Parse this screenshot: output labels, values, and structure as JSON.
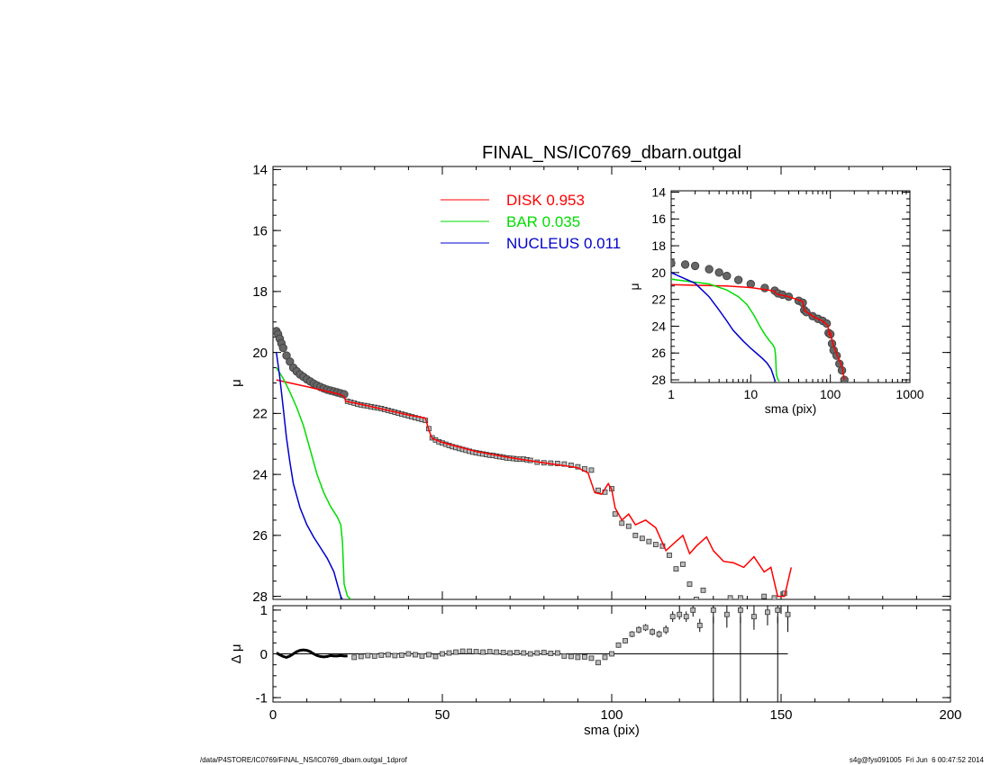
{
  "chart_data": [
    {
      "type": "scatter",
      "title": "FINAL_NS/IC0769_dbarn.outgal",
      "xlabel": "sma (pix)",
      "ylabel": "μ",
      "xlim": [
        0,
        200
      ],
      "ylim": [
        28.1,
        13.9
      ],
      "y_inverted": true,
      "xticks": [
        0,
        50,
        100,
        150,
        200
      ],
      "yticks": [
        14,
        16,
        18,
        20,
        22,
        24,
        26,
        28
      ],
      "legend": {
        "placement": "top-center",
        "entries": [
          {
            "label": "DISK",
            "value": "0.953",
            "color": "#ff0000"
          },
          {
            "label": "BAR",
            "value": "0.035",
            "color": "#00dd00"
          },
          {
            "label": "NUCLEUS",
            "value": "0.011",
            "color": "#0000cc"
          }
        ]
      },
      "series": [
        {
          "color": "#555555",
          "style": "squares-thick",
          "x": [
            1,
            1.5,
            2,
            2.5,
            3,
            4,
            5,
            6,
            7,
            8,
            9,
            10,
            11,
            12,
            13,
            14,
            15,
            16,
            17,
            18,
            19,
            20,
            21
          ],
          "y": [
            19.3,
            19.4,
            19.55,
            19.7,
            19.85,
            20.1,
            20.3,
            20.5,
            20.62,
            20.72,
            20.8,
            20.88,
            20.95,
            21.02,
            21.08,
            21.13,
            21.18,
            21.22,
            21.25,
            21.28,
            21.31,
            21.34,
            21.37
          ]
        },
        {
          "color": "#555555",
          "style": "squares",
          "x": [
            22,
            23,
            24,
            25,
            26,
            27,
            28,
            29,
            30,
            31,
            32,
            33,
            34,
            35,
            36,
            37,
            38,
            39,
            40,
            41,
            42,
            43,
            44,
            45,
            46,
            47,
            48,
            49,
            50,
            51,
            52,
            53,
            54,
            55,
            56,
            57,
            58,
            59,
            60,
            61,
            62,
            63,
            64,
            65,
            66,
            67,
            68,
            69,
            70,
            71,
            72,
            73,
            74,
            75,
            76,
            78,
            80,
            82,
            84,
            86,
            88,
            90,
            92,
            94,
            96,
            98,
            100,
            101,
            103,
            105,
            107,
            109,
            111,
            113,
            115,
            117,
            119,
            121,
            123,
            125,
            127,
            135,
            138,
            145,
            148,
            151
          ],
          "y": [
            21.6,
            21.63,
            21.66,
            21.7,
            21.72,
            21.74,
            21.76,
            21.78,
            21.8,
            21.82,
            21.84,
            21.87,
            21.9,
            21.93,
            21.96,
            21.99,
            22.02,
            22.05,
            22.08,
            22.11,
            22.14,
            22.17,
            22.2,
            22.23,
            22.5,
            22.8,
            22.87,
            22.93,
            22.97,
            23.01,
            23.05,
            23.09,
            23.12,
            23.15,
            23.18,
            23.21,
            23.24,
            23.27,
            23.29,
            23.31,
            23.33,
            23.35,
            23.37,
            23.38,
            23.4,
            23.42,
            23.44,
            23.46,
            23.47,
            23.48,
            23.5,
            23.5,
            23.5,
            23.52,
            23.54,
            23.6,
            23.62,
            23.63,
            23.64,
            23.66,
            23.7,
            23.75,
            23.82,
            23.86,
            24.52,
            24.58,
            24.47,
            25.3,
            25.6,
            25.7,
            26.0,
            26.1,
            26.2,
            26.3,
            26.35,
            26.65,
            27.1,
            26.95,
            27.6,
            28.1,
            27.8,
            28.05,
            28.05,
            28.0,
            28.05,
            27.9
          ]
        },
        {
          "color": "#ff0000",
          "style": "line",
          "x": [
            1,
            5,
            10,
            15,
            20,
            21,
            21.5,
            25,
            30,
            40,
            45,
            46,
            47,
            50,
            60,
            70,
            80,
            90,
            93,
            95,
            97,
            99,
            100,
            101,
            103,
            105,
            107,
            110,
            113,
            116,
            119,
            121,
            123,
            125,
            128,
            130,
            133,
            136,
            139,
            142,
            145,
            147,
            149,
            151,
            153
          ],
          "y": [
            20.9,
            21.0,
            21.12,
            21.25,
            21.38,
            21.45,
            21.6,
            21.68,
            21.8,
            22.05,
            22.15,
            22.55,
            22.82,
            22.95,
            23.25,
            23.45,
            23.62,
            23.78,
            23.95,
            24.6,
            24.65,
            24.3,
            24.5,
            25.1,
            25.5,
            25.3,
            25.65,
            25.5,
            25.75,
            26.5,
            26.2,
            26.0,
            26.6,
            26.35,
            26.05,
            26.5,
            26.85,
            26.9,
            27.05,
            26.7,
            27.2,
            27.05,
            28.0,
            28.0,
            27.05
          ]
        },
        {
          "color": "#00dd00",
          "style": "line",
          "x": [
            1,
            3,
            5,
            7,
            9,
            11,
            13,
            15,
            17,
            19,
            20,
            20.5,
            21,
            22,
            23
          ],
          "y": [
            20.5,
            20.85,
            21.3,
            21.8,
            22.4,
            23.2,
            24.0,
            24.6,
            25.05,
            25.4,
            25.65,
            26.2,
            27.6,
            28.0,
            28.1
          ]
        },
        {
          "color": "#0000cc",
          "style": "line",
          "x": [
            1,
            2,
            3,
            4,
            5,
            6,
            8,
            10,
            12,
            14,
            16,
            18,
            19,
            20,
            20.5
          ],
          "y": [
            20.0,
            20.8,
            21.8,
            22.8,
            23.6,
            24.3,
            25.1,
            25.65,
            26.05,
            26.4,
            26.75,
            27.2,
            27.6,
            28.0,
            28.1
          ]
        }
      ]
    },
    {
      "type": "scatter",
      "title": "",
      "xlabel": "sma (pix)",
      "ylabel": "μ",
      "x_scale": "log",
      "xlim": [
        1,
        1000
      ],
      "ylim": [
        28.2,
        13.9
      ],
      "y_inverted": true,
      "xticks": [
        1,
        10,
        100,
        1000
      ],
      "yticks": [
        14,
        16,
        18,
        20,
        22,
        24,
        26,
        28
      ],
      "series": [
        {
          "color": "#555555",
          "style": "squares-thick",
          "x": [
            1,
            1.5,
            2,
            3,
            4,
            5,
            7,
            10,
            15,
            20,
            22,
            25,
            30,
            40,
            45,
            47,
            50,
            60,
            70,
            80,
            90,
            95,
            100,
            105,
            110,
            120,
            130,
            140,
            150
          ],
          "y": [
            19.3,
            19.4,
            19.5,
            19.75,
            20.0,
            20.25,
            20.55,
            20.85,
            21.15,
            21.35,
            21.55,
            21.65,
            21.8,
            22.1,
            22.25,
            22.8,
            22.95,
            23.25,
            23.45,
            23.6,
            23.8,
            24.5,
            24.6,
            25.3,
            25.8,
            26.2,
            26.8,
            27.3,
            28.0
          ]
        },
        {
          "color": "#ff0000",
          "style": "line",
          "x": [
            1,
            5,
            10,
            20,
            21,
            30,
            45,
            47,
            60,
            80,
            93,
            97,
            100,
            110,
            125,
            140,
            150
          ],
          "y": [
            20.9,
            21.0,
            21.12,
            21.38,
            21.6,
            21.8,
            22.15,
            22.82,
            23.25,
            23.62,
            23.95,
            24.65,
            24.5,
            25.5,
            26.3,
            27.0,
            28.0
          ]
        },
        {
          "color": "#00dd00",
          "style": "line",
          "x": [
            1,
            3,
            5,
            7,
            9,
            11,
            13,
            15,
            17,
            19,
            20,
            20.5,
            21,
            22,
            23
          ],
          "y": [
            20.5,
            20.85,
            21.3,
            21.8,
            22.4,
            23.2,
            24.0,
            24.6,
            25.05,
            25.4,
            25.65,
            26.2,
            27.6,
            28.0,
            28.1
          ]
        },
        {
          "color": "#0000cc",
          "style": "line",
          "x": [
            1,
            2,
            3,
            4,
            5,
            6,
            8,
            10,
            12,
            14,
            16,
            18,
            19,
            20,
            20.5
          ],
          "y": [
            20.0,
            20.8,
            21.8,
            22.8,
            23.6,
            24.3,
            25.1,
            25.65,
            26.05,
            26.4,
            26.75,
            27.2,
            27.6,
            28.0,
            28.1
          ]
        }
      ]
    },
    {
      "type": "scatter",
      "title": "",
      "xlabel": "sma (pix)",
      "ylabel": "Δ μ",
      "xlim": [
        0,
        200
      ],
      "ylim": [
        -1.1,
        1.1
      ],
      "xticks": [
        0,
        50,
        100,
        150,
        200
      ],
      "yticks": [
        -1,
        0,
        1
      ],
      "zero_line": true,
      "series": [
        {
          "color": "#555555",
          "style": "squares-error",
          "x": [
            24,
            26,
            28,
            30,
            32,
            34,
            36,
            38,
            40,
            42,
            44,
            46,
            48,
            50,
            52,
            54,
            56,
            58,
            60,
            62,
            64,
            66,
            68,
            70,
            72,
            74,
            76,
            78,
            80,
            82,
            84,
            86,
            88,
            90,
            92,
            94,
            96,
            98,
            100,
            102,
            104,
            106,
            108,
            110,
            112,
            114,
            116,
            118,
            120,
            122,
            124,
            126,
            130,
            134,
            138,
            142,
            146,
            149,
            152
          ],
          "y": [
            -0.08,
            -0.06,
            -0.04,
            -0.05,
            -0.03,
            -0.02,
            -0.04,
            -0.03,
            0.0,
            -0.02,
            -0.05,
            -0.02,
            -0.06,
            0.0,
            0.02,
            0.04,
            0.06,
            0.06,
            0.05,
            0.04,
            0.05,
            0.04,
            0.03,
            0.02,
            0.03,
            0.02,
            0.0,
            0.02,
            0.03,
            0.01,
            0.02,
            -0.05,
            -0.06,
            -0.08,
            -0.07,
            -0.1,
            -0.2,
            -0.08,
            0.0,
            0.2,
            0.3,
            0.45,
            0.55,
            0.6,
            0.5,
            0.45,
            0.55,
            0.85,
            0.9,
            0.85,
            1.0,
            0.65,
            1.0,
            0.9,
            1.0,
            0.85,
            0.95,
            1.0,
            0.9
          ],
          "err": [
            0.02,
            0.02,
            0.02,
            0.02,
            0.02,
            0.02,
            0.02,
            0.02,
            0.02,
            0.02,
            0.02,
            0.02,
            0.02,
            0.02,
            0.02,
            0.02,
            0.02,
            0.02,
            0.02,
            0.02,
            0.02,
            0.02,
            0.02,
            0.02,
            0.02,
            0.02,
            0.02,
            0.02,
            0.02,
            0.02,
            0.02,
            0.02,
            0.03,
            0.03,
            0.03,
            0.03,
            0.04,
            0.04,
            0.04,
            0.06,
            0.06,
            0.07,
            0.08,
            0.08,
            0.08,
            0.08,
            0.1,
            0.12,
            0.12,
            0.12,
            0.15,
            0.15,
            0.3,
            0.3,
            0.3,
            0.3,
            0.3,
            0.3,
            0.4
          ]
        },
        {
          "color": "#000000",
          "style": "line-thick",
          "x": [
            1,
            2,
            3,
            4,
            5,
            6,
            7,
            8,
            9,
            10,
            11,
            12,
            13,
            14,
            15,
            16,
            17,
            18,
            19,
            20,
            21,
            22
          ],
          "y": [
            0.02,
            -0.02,
            -0.06,
            -0.08,
            -0.05,
            0.0,
            0.05,
            0.08,
            0.09,
            0.08,
            0.05,
            0.0,
            -0.04,
            -0.06,
            -0.07,
            -0.06,
            -0.04,
            -0.05,
            -0.05,
            -0.04,
            -0.05,
            -0.05
          ]
        },
        {
          "color": "#000000",
          "style": "vlines",
          "x": [
            130,
            138,
            149
          ],
          "y": [
            -1.1,
            -1.1,
            -1.1
          ]
        }
      ]
    }
  ],
  "footer": {
    "left": "/data/P4STORE/IC0769/FINAL_NS/IC0769_dbarn.outgal_1dprof",
    "right": "s4g@fys091005  Fri Jun  6 00:47:52 2014"
  }
}
